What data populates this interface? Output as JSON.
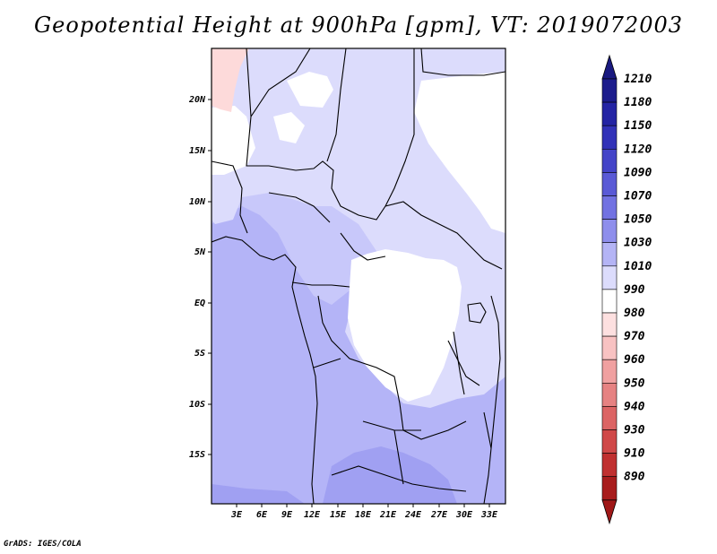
{
  "title": "Geopotential Height at 900hPa [gpm], VT: 2019072003",
  "credit": "GrADS: IGES/COLA",
  "map": {
    "lat_labels": [
      "20N",
      "15N",
      "10N",
      "5N",
      "EQ",
      "5S",
      "10S",
      "15S"
    ],
    "lon_labels": [
      "3E",
      "6E",
      "9E",
      "12E",
      "15E",
      "18E",
      "21E",
      "24E",
      "27E",
      "30E",
      "33E"
    ],
    "fill_colors": {
      "light_red": "#fddada",
      "white": "#ffffff",
      "very_light_blue": "#dcdcfc",
      "light_blue": "#c8c8fa",
      "medium_blue": "#b4b4f7",
      "blue": "#a0a0f2"
    }
  },
  "colorbar": {
    "levels": [
      {
        "label": "1210",
        "color": "#1c1c8c"
      },
      {
        "label": "1180",
        "color": "#2424a4"
      },
      {
        "label": "1150",
        "color": "#3232b8"
      },
      {
        "label": "1120",
        "color": "#4444c8"
      },
      {
        "label": "1090",
        "color": "#5a5ad6"
      },
      {
        "label": "1070",
        "color": "#7272e2"
      },
      {
        "label": "1050",
        "color": "#8e8eec"
      },
      {
        "label": "1030",
        "color": "#b4b4f5"
      },
      {
        "label": "1010",
        "color": "#dcdcfc"
      },
      {
        "label": "990",
        "color": "#ffffff"
      },
      {
        "label": "980",
        "color": "#fde0e0"
      },
      {
        "label": "970",
        "color": "#f8c2c2"
      },
      {
        "label": "960",
        "color": "#f0a0a0"
      },
      {
        "label": "950",
        "color": "#e68282"
      },
      {
        "label": "940",
        "color": "#dc6464"
      },
      {
        "label": "930",
        "color": "#d04848"
      },
      {
        "label": "910",
        "color": "#c03030"
      },
      {
        "label": "890",
        "color": "#a81c1c"
      }
    ],
    "top_arrow_color": "#1a1a80",
    "bottom_arrow_color": "#a01818"
  }
}
